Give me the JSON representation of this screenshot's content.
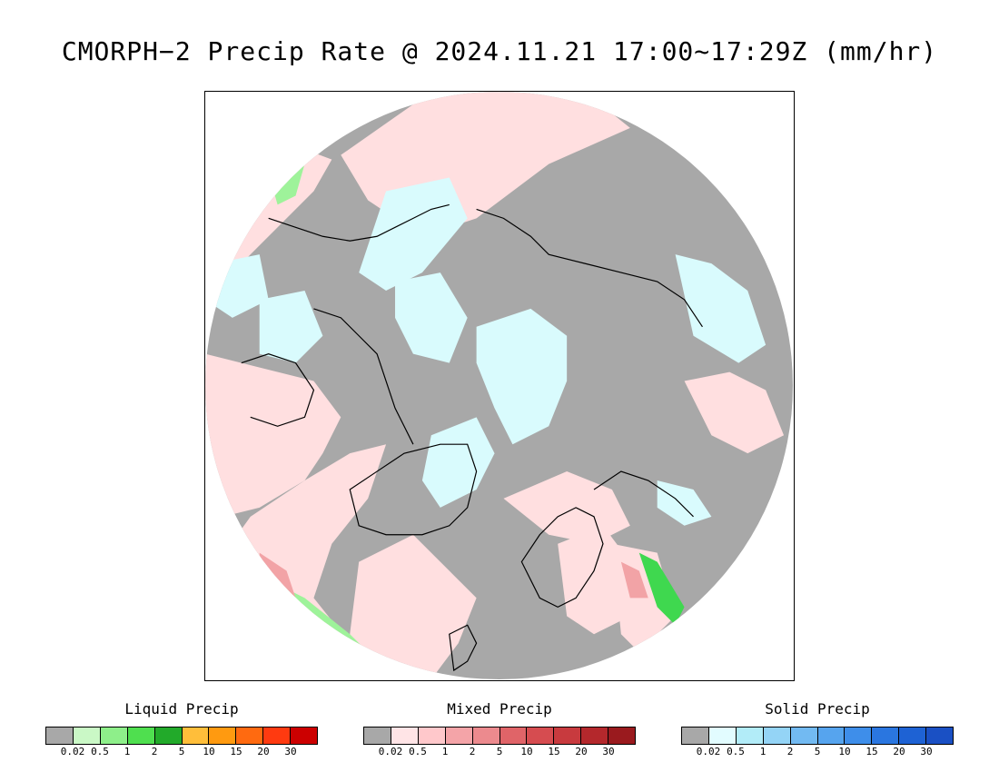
{
  "title": "CMORPH−2 Precip Rate @ 2024.11.21 17:00~17:29Z (mm/hr)",
  "map": {
    "projection": "north-polar-stereographic",
    "colors": {
      "no_precip": "#a8a8a8",
      "mixed_light": "#ffdfe0",
      "solid_light": "#d9fbfd",
      "liquid_light": "#9ef39a",
      "liquid_mid": "#3fd84f",
      "mixed_mid": "#f2a3a6",
      "coast": "#000000"
    }
  },
  "legends": [
    {
      "title": "Liquid Precip",
      "colors": [
        "#a8a8a8",
        "#caf8c6",
        "#8eef8a",
        "#4fdf4f",
        "#22aa2a",
        "#ffbe3a",
        "#ff9a10",
        "#ff6a10",
        "#ff3a10",
        "#cc0000"
      ],
      "ticks": [
        "0.02",
        "0.5",
        "1",
        "2",
        "5",
        "10",
        "15",
        "20",
        "30"
      ]
    },
    {
      "title": "Mixed Precip",
      "colors": [
        "#a8a8a8",
        "#ffe4e6",
        "#ffc8cb",
        "#f4a4a8",
        "#ec8a8e",
        "#e06468",
        "#d64c50",
        "#c83a3e",
        "#b4282c",
        "#9a1a1e"
      ],
      "ticks": [
        "0.02",
        "0.5",
        "1",
        "2",
        "5",
        "10",
        "15",
        "20",
        "30"
      ]
    },
    {
      "title": "Solid Precip",
      "colors": [
        "#a8a8a8",
        "#e2fcff",
        "#b2ecf8",
        "#94d4f6",
        "#72baf2",
        "#56a4ee",
        "#3e8eea",
        "#2a76e0",
        "#1e62d4",
        "#1a50c4"
      ],
      "ticks": [
        "0.02",
        "0.5",
        "1",
        "2",
        "5",
        "10",
        "15",
        "20",
        "30"
      ]
    }
  ]
}
